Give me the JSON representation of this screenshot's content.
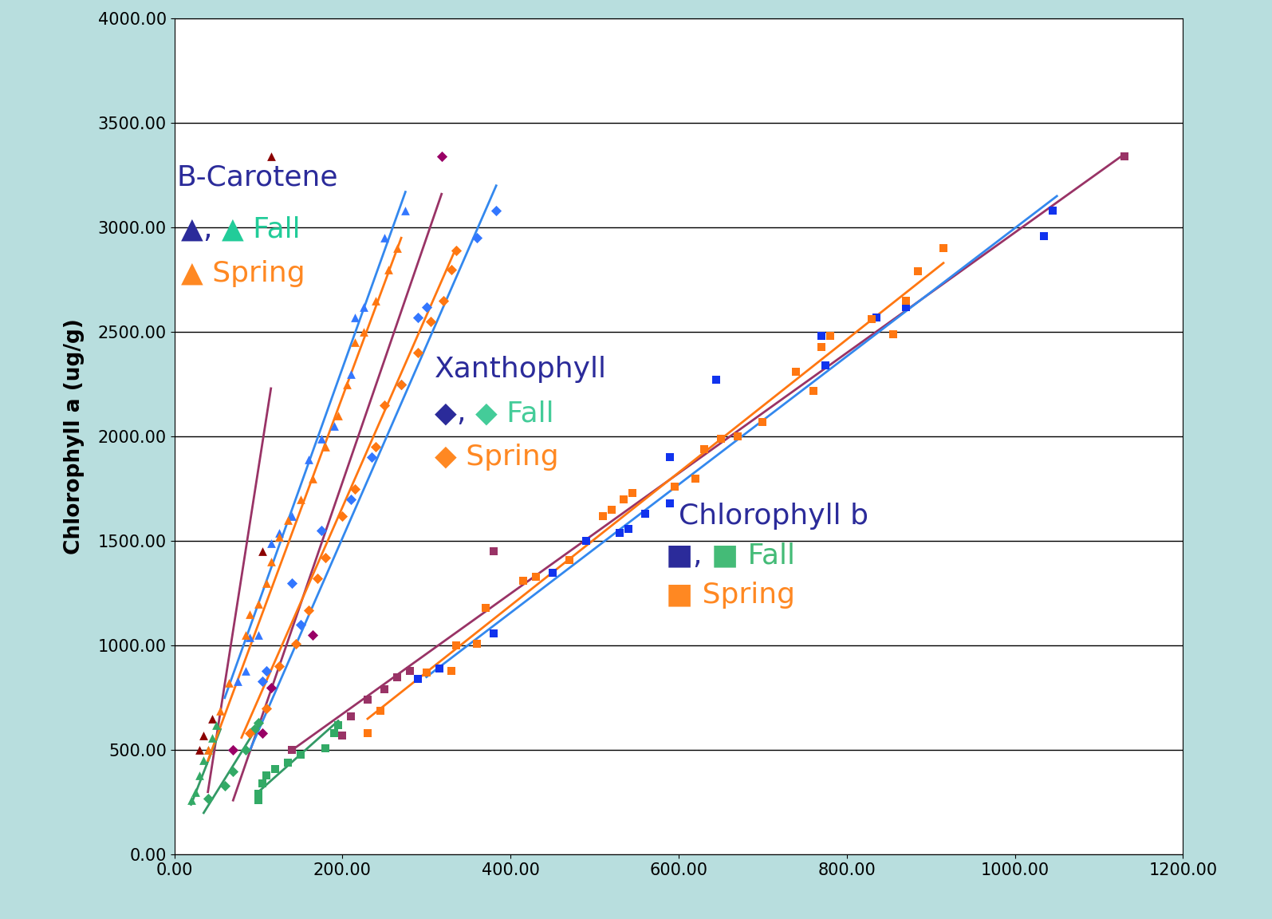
{
  "chart_data": {
    "type": "scatter",
    "y_label": "Chlorophyll a (ug/g)",
    "xlim": [
      0,
      1200
    ],
    "ylim": [
      0,
      4000
    ],
    "xticks": [
      {
        "value": 0,
        "label": "0.00"
      },
      {
        "value": 200,
        "label": "200.00"
      },
      {
        "value": 400,
        "label": "400.00"
      },
      {
        "value": 600,
        "label": "600.00"
      },
      {
        "value": 800,
        "label": "800.00"
      },
      {
        "value": 1000,
        "label": "1000.00"
      },
      {
        "value": 1200,
        "label": "1200.00"
      }
    ],
    "yticks": [
      {
        "value": 0,
        "label": "0.00"
      },
      {
        "value": 500,
        "label": "500.00"
      },
      {
        "value": 1000,
        "label": "1000.00"
      },
      {
        "value": 1500,
        "label": "1500.00"
      },
      {
        "value": 2000,
        "label": "2000.00"
      },
      {
        "value": 2500,
        "label": "2500.00"
      },
      {
        "value": 3000,
        "label": "3000.00"
      },
      {
        "value": 3500,
        "label": "3500.00"
      },
      {
        "value": 4000,
        "label": "4000.00"
      }
    ],
    "grid": "y",
    "annotations": [
      {
        "x": 3,
        "y": 3240,
        "parts": [
          {
            "text": "B-Carotene",
            "color": "#2b2b9a"
          }
        ]
      },
      {
        "x": 8,
        "y": 2990,
        "parts": [
          {
            "text": "▲",
            "color": "#2b2b9a"
          },
          {
            "text": ", ",
            "color": "#2b2b9a"
          },
          {
            "text": "▲ Fall",
            "color": "#22cc99"
          }
        ]
      },
      {
        "x": 8,
        "y": 2780,
        "parts": [
          {
            "text": "▲ Spring",
            "color": "#ff8822"
          }
        ]
      },
      {
        "x": 310,
        "y": 2320,
        "parts": [
          {
            "text": "Xanthophyll",
            "color": "#2b2b9a"
          }
        ]
      },
      {
        "x": 310,
        "y": 2110,
        "parts": [
          {
            "text": "◆",
            "color": "#2b2b9a"
          },
          {
            "text": ", ",
            "color": "#2b2b9a"
          },
          {
            "text": "◆ Fall",
            "color": "#44cc99"
          }
        ]
      },
      {
        "x": 310,
        "y": 1900,
        "parts": [
          {
            "text": "◆ Spring",
            "color": "#ff8822"
          }
        ]
      },
      {
        "x": 600,
        "y": 1620,
        "parts": [
          {
            "text": "Chlorophyll b",
            "color": "#2b2b9a"
          }
        ]
      },
      {
        "x": 585,
        "y": 1430,
        "parts": [
          {
            "text": "■",
            "color": "#2b2b9a"
          },
          {
            "text": ", ",
            "color": "#2b2b9a"
          },
          {
            "text": "■ Fall",
            "color": "#44bb77"
          }
        ]
      },
      {
        "x": 585,
        "y": 1240,
        "parts": [
          {
            "text": "■ Spring",
            "color": "#ff8822"
          }
        ]
      }
    ],
    "series": [
      {
        "type": "scatter",
        "marker": "triangle",
        "color": "#8b0000",
        "x": [
          30,
          35,
          45,
          105,
          115
        ],
        "values": [
          500,
          570,
          650,
          1450,
          3340
        ]
      },
      {
        "type": "line",
        "color": "#993366",
        "x": [
          40,
          115
        ],
        "values": [
          300,
          2230
        ]
      },
      {
        "type": "scatter",
        "marker": "triangle",
        "color": "#33aa66",
        "x": [
          20,
          25,
          30,
          35,
          40,
          45,
          50
        ],
        "values": [
          260,
          300,
          380,
          450,
          500,
          560,
          620
        ]
      },
      {
        "type": "line",
        "color": "#339966",
        "x": [
          20,
          55
        ],
        "values": [
          240,
          600
        ]
      },
      {
        "type": "scatter",
        "marker": "triangle",
        "color": "#3377ff",
        "x": [
          75,
          85,
          90,
          100,
          115,
          125,
          140,
          160,
          175,
          190,
          210,
          215,
          225,
          250,
          275
        ],
        "values": [
          830,
          880,
          1040,
          1050,
          1490,
          1540,
          1620,
          1890,
          1990,
          2050,
          2300,
          2570,
          2620,
          2950,
          3080
        ]
      },
      {
        "type": "line",
        "color": "#3388ee",
        "x": [
          60,
          275
        ],
        "values": [
          750,
          3170
        ]
      },
      {
        "type": "scatter",
        "marker": "triangle",
        "color": "#ff7711",
        "x": [
          40,
          55,
          65,
          85,
          90,
          100,
          110,
          115,
          125,
          135,
          150,
          165,
          180,
          195,
          205,
          215,
          225,
          240,
          255,
          265
        ],
        "values": [
          500,
          690,
          820,
          1050,
          1150,
          1200,
          1300,
          1400,
          1520,
          1600,
          1700,
          1800,
          1950,
          2100,
          2250,
          2450,
          2500,
          2650,
          2800,
          2900
        ]
      },
      {
        "type": "line",
        "color": "#ff7711",
        "x": [
          40,
          270
        ],
        "values": [
          450,
          2950
        ]
      },
      {
        "type": "scatter",
        "marker": "diamond",
        "color": "#990066",
        "x": [
          70,
          105,
          115,
          165,
          318
        ],
        "values": [
          500,
          580,
          800,
          1050,
          3340
        ]
      },
      {
        "type": "line",
        "color": "#993366",
        "x": [
          70,
          318
        ],
        "values": [
          260,
          3160
        ]
      },
      {
        "type": "scatter",
        "marker": "diamond",
        "color": "#33aa66",
        "x": [
          40,
          60,
          70,
          85,
          95,
          100
        ],
        "values": [
          270,
          330,
          400,
          500,
          600,
          630
        ]
      },
      {
        "type": "line",
        "color": "#339966",
        "x": [
          35,
          100
        ],
        "values": [
          200,
          620
        ]
      },
      {
        "type": "scatter",
        "marker": "diamond",
        "color": "#3377ff",
        "x": [
          105,
          110,
          140,
          150,
          175,
          210,
          235,
          270,
          290,
          300,
          360,
          383
        ],
        "values": [
          830,
          880,
          1300,
          1100,
          1550,
          1700,
          1900,
          2250,
          2570,
          2620,
          2950,
          3080
        ]
      },
      {
        "type": "line",
        "color": "#3388ee",
        "x": [
          90,
          383
        ],
        "values": [
          500,
          3200
        ]
      },
      {
        "type": "scatter",
        "marker": "diamond",
        "color": "#ff7711",
        "x": [
          90,
          110,
          125,
          145,
          160,
          170,
          180,
          200,
          215,
          240,
          250,
          270,
          290,
          305,
          320,
          330,
          335
        ],
        "values": [
          580,
          700,
          900,
          1010,
          1170,
          1320,
          1420,
          1620,
          1750,
          1950,
          2150,
          2250,
          2400,
          2550,
          2650,
          2800,
          2890
        ]
      },
      {
        "type": "line",
        "color": "#ff7711",
        "x": [
          80,
          335
        ],
        "values": [
          560,
          2900
        ]
      },
      {
        "type": "scatter",
        "marker": "square",
        "color": "#993366",
        "x": [
          140,
          200,
          210,
          230,
          250,
          265,
          280,
          380,
          1130
        ],
        "values": [
          500,
          570,
          660,
          740,
          790,
          850,
          880,
          1450,
          3340
        ]
      },
      {
        "type": "line",
        "color": "#993366",
        "x": [
          140,
          1130
        ],
        "values": [
          500,
          3350
        ]
      },
      {
        "type": "scatter",
        "marker": "square",
        "color": "#33aa66",
        "x": [
          100,
          100,
          105,
          110,
          120,
          135,
          150,
          180,
          190,
          195
        ],
        "values": [
          260,
          290,
          340,
          380,
          410,
          440,
          480,
          510,
          580,
          620
        ]
      },
      {
        "type": "line",
        "color": "#339966",
        "x": [
          100,
          195
        ],
        "values": [
          300,
          640
        ]
      },
      {
        "type": "scatter",
        "marker": "square",
        "color": "#1133ee",
        "x": [
          290,
          315,
          380,
          450,
          490,
          530,
          540,
          560,
          590,
          590,
          645,
          770,
          775,
          835,
          870,
          1035,
          1045
        ],
        "values": [
          840,
          890,
          1060,
          1350,
          1500,
          1540,
          1560,
          1630,
          1680,
          1900,
          2270,
          2480,
          2340,
          2570,
          2620,
          2960,
          3080
        ]
      },
      {
        "type": "line",
        "color": "#3388ee",
        "x": [
          300,
          1050
        ],
        "values": [
          850,
          3150
        ]
      },
      {
        "type": "scatter",
        "marker": "square",
        "color": "#ff7711",
        "x": [
          230,
          245,
          300,
          330,
          335,
          360,
          370,
          415,
          430,
          470,
          510,
          520,
          535,
          545,
          595,
          620,
          630,
          650,
          670,
          700,
          740,
          760,
          770,
          780,
          830,
          855,
          870,
          885,
          915
        ],
        "values": [
          580,
          690,
          870,
          880,
          1000,
          1010,
          1180,
          1310,
          1330,
          1410,
          1620,
          1650,
          1700,
          1730,
          1760,
          1800,
          1940,
          1990,
          2000,
          2070,
          2310,
          2220,
          2430,
          2480,
          2560,
          2490,
          2650,
          2790,
          2900
        ]
      },
      {
        "type": "line",
        "color": "#ff7711",
        "x": [
          230,
          915
        ],
        "values": [
          650,
          2830
        ]
      }
    ]
  }
}
